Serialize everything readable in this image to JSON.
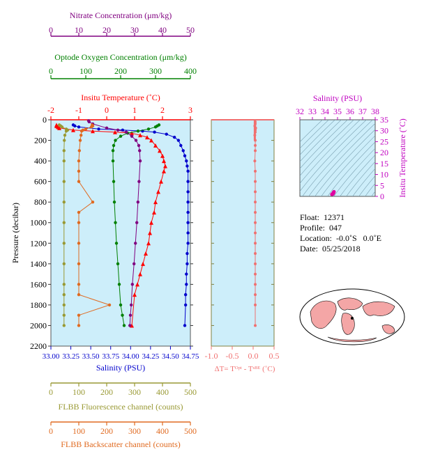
{
  "float_info": {
    "float": "Float:  12371",
    "profile": "Profile:  047",
    "location": "Location:  -0.0˚S   0.0˚E",
    "date": "Date:  05/25/2018"
  },
  "colors": {
    "temperature": "#ff0000",
    "salinity": "#0000cc",
    "oxygen": "#008000",
    "nitrate": "#800080",
    "fluorescence": "#999933",
    "backscatter": "#e06a20",
    "delta_t": "#f07070",
    "panel_bg": "#cdeefa",
    "land": "#f4a6a6"
  },
  "chart_data": [
    {
      "type": "line",
      "panel": "profile",
      "yaxis": {
        "label": "Pressure (decibar)",
        "range": [
          0,
          2200
        ],
        "reversed": true,
        "ticks": [
          0,
          200,
          400,
          600,
          800,
          1000,
          1200,
          1400,
          1600,
          1800,
          2000,
          2200
        ]
      },
      "axes": {
        "nitrate": {
          "label": "Nitrate Concentration (μm/kg)",
          "range": [
            0,
            50
          ],
          "ticks": [
            0,
            10,
            20,
            30,
            40,
            50
          ]
        },
        "oxygen": {
          "label": "Optode Oxygen Concentration (μm/kg)",
          "range": [
            0,
            400
          ],
          "ticks": [
            0,
            100,
            200,
            300,
            400
          ]
        },
        "temperature": {
          "label": "Insitu Temperature (˚C)",
          "range": [
            -2,
            3
          ],
          "ticks": [
            -2,
            -1,
            0,
            1,
            2,
            3
          ]
        },
        "salinity": {
          "label": "Salinity (PSU)",
          "range": [
            33.0,
            34.75
          ],
          "ticks": [
            "33.00",
            "33.25",
            "33.50",
            "33.75",
            "34.00",
            "34.25",
            "34.50",
            "34.75"
          ]
        },
        "fluorescence": {
          "label": "FLBB Fluorescence channel (counts)",
          "range": [
            0,
            500
          ],
          "ticks": [
            0,
            100,
            200,
            300,
            400,
            500
          ]
        },
        "backscatter": {
          "label": "FLBB Backscatter channel (counts)",
          "range": [
            0,
            500
          ],
          "ticks": [
            0,
            100,
            200,
            300,
            400,
            500
          ]
        }
      },
      "series": [
        {
          "key": "temperature",
          "axis": "temperature",
          "marker": "triangle",
          "x": [
            -1.8,
            -1.8,
            -1.75,
            -1.7,
            -1.2,
            -0.5,
            0.3,
            0.9,
            1.2,
            1.45,
            1.6,
            1.75,
            1.9,
            2.0,
            2.05,
            2.1,
            2.05,
            1.95,
            1.85,
            1.75,
            1.7,
            1.6,
            1.55,
            1.5,
            1.4,
            1.3,
            1.2,
            1.1,
            1.0,
            0.9
          ],
          "y": [
            50,
            60,
            70,
            80,
            100,
            110,
            120,
            130,
            150,
            170,
            200,
            250,
            300,
            350,
            400,
            450,
            500,
            600,
            700,
            800,
            900,
            1000,
            1100,
            1200,
            1300,
            1400,
            1500,
            1600,
            1700,
            2000
          ]
        },
        {
          "key": "salinity",
          "axis": "salinity",
          "marker": "circle",
          "x": [
            33.28,
            33.3,
            33.35,
            33.6,
            33.9,
            34.15,
            34.3,
            34.45,
            34.55,
            34.6,
            34.63,
            34.66,
            34.68,
            34.7,
            34.71,
            34.72,
            34.72,
            34.72,
            34.72,
            34.72,
            34.72,
            34.72,
            34.72,
            34.71,
            34.71,
            34.7,
            34.7,
            34.69,
            34.69,
            34.68
          ],
          "y": [
            50,
            60,
            70,
            90,
            100,
            110,
            120,
            140,
            170,
            200,
            250,
            300,
            350,
            400,
            450,
            500,
            600,
            700,
            800,
            900,
            1000,
            1100,
            1200,
            1300,
            1400,
            1500,
            1600,
            1700,
            1800,
            2000
          ]
        },
        {
          "key": "oxygen",
          "axis": "oxygen",
          "marker": "circle",
          "x": [
            310,
            305,
            300,
            280,
            250,
            220,
            200,
            185,
            180,
            178,
            178,
            180,
            182,
            185,
            188,
            192,
            196,
            200,
            205,
            210
          ],
          "y": [
            50,
            60,
            70,
            90,
            110,
            130,
            160,
            200,
            250,
            300,
            400,
            600,
            800,
            1000,
            1200,
            1400,
            1600,
            1800,
            1900,
            2000
          ]
        },
        {
          "key": "nitrate",
          "axis": "nitrate",
          "marker": "circle",
          "x": [
            13.5,
            13.7,
            15,
            20,
            24,
            27,
            29,
            30.5,
            31.5,
            31.8,
            32,
            31.6,
            31.2,
            30.8,
            30.3,
            29.8,
            29.2,
            28.8,
            28.5,
            28.3
          ],
          "y": [
            10,
            20,
            40,
            80,
            100,
            120,
            160,
            200,
            250,
            300,
            400,
            600,
            800,
            1000,
            1200,
            1400,
            1600,
            1800,
            1900,
            2000
          ]
        },
        {
          "key": "fluorescence",
          "axis": "fluorescence",
          "marker": "circle",
          "x": [
            30,
            35,
            40,
            55,
            60,
            55,
            50,
            48,
            47,
            47,
            47,
            47,
            47,
            47,
            47,
            47,
            47,
            47,
            47,
            47
          ],
          "y": [
            50,
            60,
            70,
            90,
            100,
            110,
            150,
            200,
            300,
            400,
            600,
            800,
            1000,
            1200,
            1400,
            1600,
            1700,
            1800,
            1900,
            2000
          ]
        },
        {
          "key": "backscatter",
          "axis": "backscatter",
          "marker": "circle",
          "x": [
            148,
            150,
            145,
            125,
            115,
            110,
            108,
            105,
            102,
            100,
            100,
            100,
            150,
            100,
            100,
            100,
            100,
            100,
            100,
            210,
            100,
            100
          ],
          "y": [
            50,
            60,
            70,
            90,
            100,
            110,
            150,
            200,
            300,
            400,
            500,
            600,
            800,
            900,
            1000,
            1200,
            1400,
            1600,
            1700,
            1800,
            1900,
            2000
          ]
        }
      ]
    },
    {
      "type": "line",
      "panel": "delta_t",
      "xlabel": "ΔT= Tᴼᵖᵗ - Tˢᴮᴱ (˚C)",
      "xrange": [
        -1.0,
        0.5
      ],
      "xticks": [
        "-1.0",
        "-0.5",
        "0.0",
        "0.5"
      ],
      "yrange": [
        0,
        2200
      ],
      "series": [
        {
          "key": "delta_t",
          "x": [
            0.05,
            0.05,
            0.04,
            0.06,
            0.05,
            0.05,
            0.04,
            0.05,
            0.05,
            0.05,
            0.04,
            0.05,
            0.05,
            0.05,
            0.05,
            0.05,
            0.05,
            0.05,
            0.05,
            0.05,
            0.05,
            0.05,
            0.05,
            0.05,
            0.05,
            0.05
          ],
          "y": [
            20,
            40,
            60,
            80,
            100,
            120,
            150,
            200,
            250,
            300,
            400,
            500,
            600,
            700,
            800,
            900,
            1000,
            1100,
            1200,
            1300,
            1400,
            1500,
            1600,
            1700,
            1800,
            2000
          ]
        }
      ]
    },
    {
      "type": "scatter",
      "panel": "ts_diagram",
      "title": "Salinity (PSU)",
      "xrange": [
        32,
        38
      ],
      "xticks": [
        32,
        33,
        34,
        35,
        36,
        37,
        38
      ],
      "ylabel": "Insitu Temperature (˚C)",
      "yrange": [
        0,
        35
      ],
      "yticks": [
        0,
        5,
        10,
        15,
        20,
        25,
        30,
        35
      ],
      "series": [
        {
          "key": "ts",
          "x": [
            34.55,
            34.6,
            34.65,
            34.68,
            34.7,
            34.72,
            34.7,
            34.68,
            34.65,
            34.62
          ],
          "y": [
            0.9,
            1.2,
            1.5,
            1.8,
            2.0,
            2.1,
            1.8,
            1.5,
            1.2,
            1.0
          ]
        }
      ]
    }
  ]
}
